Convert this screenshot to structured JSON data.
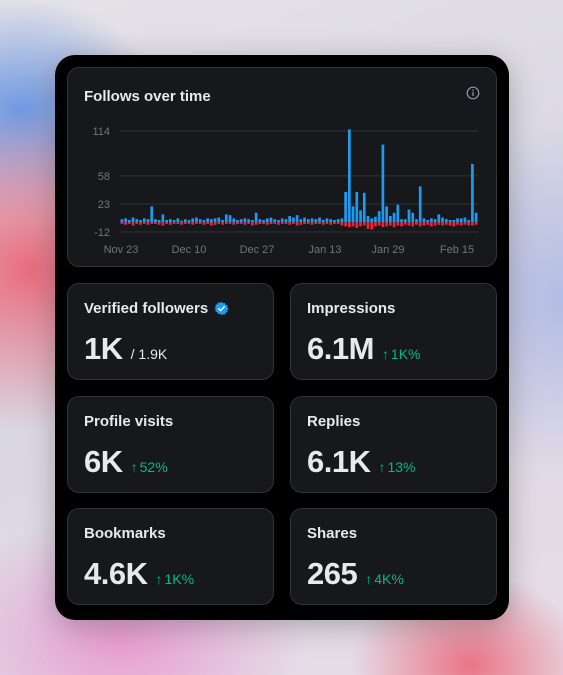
{
  "chart": {
    "title": "Follows over time",
    "info_icon": "info-icon"
  },
  "chart_data": {
    "type": "bar",
    "title": "Follows over time",
    "y_ticks": [
      "114",
      "58",
      "23",
      "-12"
    ],
    "ylim": [
      -12,
      114
    ],
    "x_ticks": [
      "Nov 23",
      "Dec 10",
      "Dec 27",
      "Jan 13",
      "Jan 29",
      "Feb 15"
    ],
    "grid": true,
    "colors": {
      "gained": "#1d9bf0",
      "lost": "#f4212e"
    },
    "series": [
      {
        "values": [
          4,
          5,
          3,
          6,
          4,
          3,
          5,
          4,
          20,
          4,
          3,
          10,
          3,
          4,
          3,
          5,
          2,
          4,
          3,
          5,
          6,
          4,
          3,
          5,
          4,
          5,
          6,
          3,
          10,
          9,
          5,
          3,
          4,
          5,
          4,
          3,
          12,
          4,
          3,
          5,
          6,
          4,
          3,
          5,
          4,
          8,
          6,
          9,
          4,
          6,
          4,
          5,
          4,
          6,
          3,
          5,
          4,
          3,
          4,
          5,
          38,
          116,
          20,
          38,
          15,
          37,
          8,
          5,
          7,
          14,
          97,
          20,
          8,
          12,
          22,
          4,
          4,
          16,
          12,
          4,
          45,
          5,
          3,
          5,
          4,
          10,
          6,
          4,
          3,
          3,
          5,
          5,
          6,
          3,
          73,
          12
        ]
      },
      {
        "values": [
          -2,
          -3,
          -2,
          -4,
          -2,
          -3,
          -2,
          -3,
          -2,
          -2,
          -3,
          -4,
          -2,
          -3,
          -2,
          -2,
          -3,
          -2,
          -2,
          -3,
          -2,
          -2,
          -3,
          -2,
          -4,
          -3,
          -2,
          -3,
          -2,
          -2,
          -3,
          -2,
          -2,
          -3,
          -2,
          -4,
          -3,
          -2,
          -2,
          -3,
          -2,
          -2,
          -3,
          -2,
          -2,
          -3,
          -2,
          -4,
          -3,
          -2,
          -2,
          -3,
          -2,
          -2,
          -3,
          -2,
          -3,
          -2,
          -2,
          -4,
          -5,
          -6,
          -5,
          -7,
          -5,
          -4,
          -8,
          -9,
          -5,
          -4,
          -6,
          -5,
          -4,
          -6,
          -4,
          -5,
          -3,
          -4,
          -5,
          -3,
          -5,
          -4,
          -3,
          -5,
          -4,
          -3,
          -4,
          -3,
          -4,
          -5,
          -3,
          -4,
          -3,
          -4,
          -4,
          -3
        ]
      }
    ]
  },
  "stats": [
    {
      "label": "Verified followers",
      "value": "1K",
      "sub": "/ 1.9K",
      "change": ""
    },
    {
      "label": "Impressions",
      "value": "6.1M",
      "sub": "",
      "change": "1K%"
    },
    {
      "label": "Profile visits",
      "value": "6K",
      "sub": "",
      "change": "52%"
    },
    {
      "label": "Replies",
      "value": "6.1K",
      "sub": "",
      "change": "13%"
    },
    {
      "label": "Bookmarks",
      "value": "4.6K",
      "sub": "",
      "change": "1K%"
    },
    {
      "label": "Shares",
      "value": "265",
      "sub": "",
      "change": "4K%"
    }
  ],
  "icons": {
    "verified": "verified-badge-icon",
    "up": "arrow-up-icon"
  }
}
